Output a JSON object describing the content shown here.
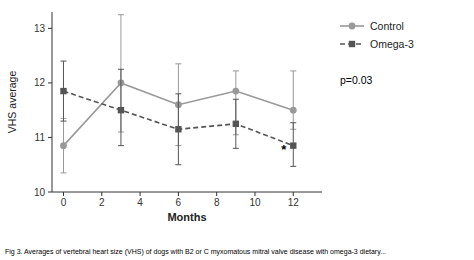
{
  "chart_data": {
    "type": "line",
    "xlabel": "Months",
    "ylabel": "VHS average",
    "x": [
      0,
      3,
      6,
      9,
      12
    ],
    "series": [
      {
        "name": "Control",
        "color": "#999999",
        "marker": "circle",
        "line_style": "solid",
        "values": [
          10.85,
          12.0,
          11.6,
          11.85,
          11.5
        ],
        "error_low": [
          0.5,
          0.9,
          0.75,
          0.8,
          0.35
        ],
        "error_high": [
          0.5,
          1.25,
          0.75,
          0.37,
          0.72
        ]
      },
      {
        "name": "Omega-3",
        "color": "#555555",
        "marker": "square",
        "line_style": "dashed",
        "values": [
          11.85,
          11.5,
          11.15,
          11.25,
          10.85
        ],
        "error_low": [
          0.55,
          0.65,
          0.65,
          0.45,
          0.38
        ],
        "error_high": [
          0.55,
          0.75,
          0.65,
          0.45,
          0.42
        ]
      }
    ],
    "xlim": [
      -0.6,
      13.5
    ],
    "ylim": [
      10,
      13.3
    ],
    "xticks": [
      0,
      2,
      4,
      6,
      8,
      10,
      12
    ],
    "yticks": [
      10,
      11,
      12,
      13
    ],
    "grid": false,
    "legend": "right",
    "annotations": [
      "*",
      "p=0.03"
    ],
    "caption": "Fig 3.  Averages of vertebral heart size (VHS) of dogs with B2 or C myxomatous mitral valve disease with omega-3 dietary..."
  }
}
